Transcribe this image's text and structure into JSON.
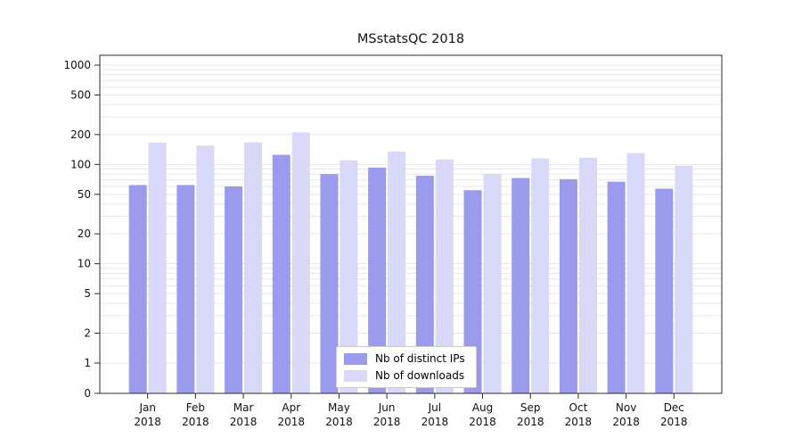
{
  "chart_data": {
    "type": "bar",
    "title": "MSstatsQC 2018",
    "scale": "symlog",
    "grid": true,
    "legend_position": "lower center",
    "categories": [
      "Jan",
      "Feb",
      "Mar",
      "Apr",
      "May",
      "Jun",
      "Jul",
      "Aug",
      "Sep",
      "Oct",
      "Nov",
      "Dec"
    ],
    "x_second_line": "2018",
    "yticks": [
      1000,
      500,
      200,
      100,
      50,
      20,
      10,
      5,
      2,
      1,
      0
    ],
    "ylim": [
      0,
      1000
    ],
    "series": [
      {
        "name": "Nb of distinct IPs",
        "color": "#9b9bee",
        "values": [
          62,
          62,
          60,
          125,
          80,
          93,
          77,
          55,
          73,
          71,
          67,
          57
        ]
      },
      {
        "name": "Nb of downloads",
        "color": "#d8d8f8",
        "values": [
          165,
          155,
          167,
          210,
          110,
          135,
          112,
          80,
          115,
          117,
          130,
          97
        ]
      }
    ]
  },
  "style": {
    "grid_color": "#e7e7e7",
    "frame_color": "#2b2b2b",
    "tick_label_color": "#111111"
  }
}
